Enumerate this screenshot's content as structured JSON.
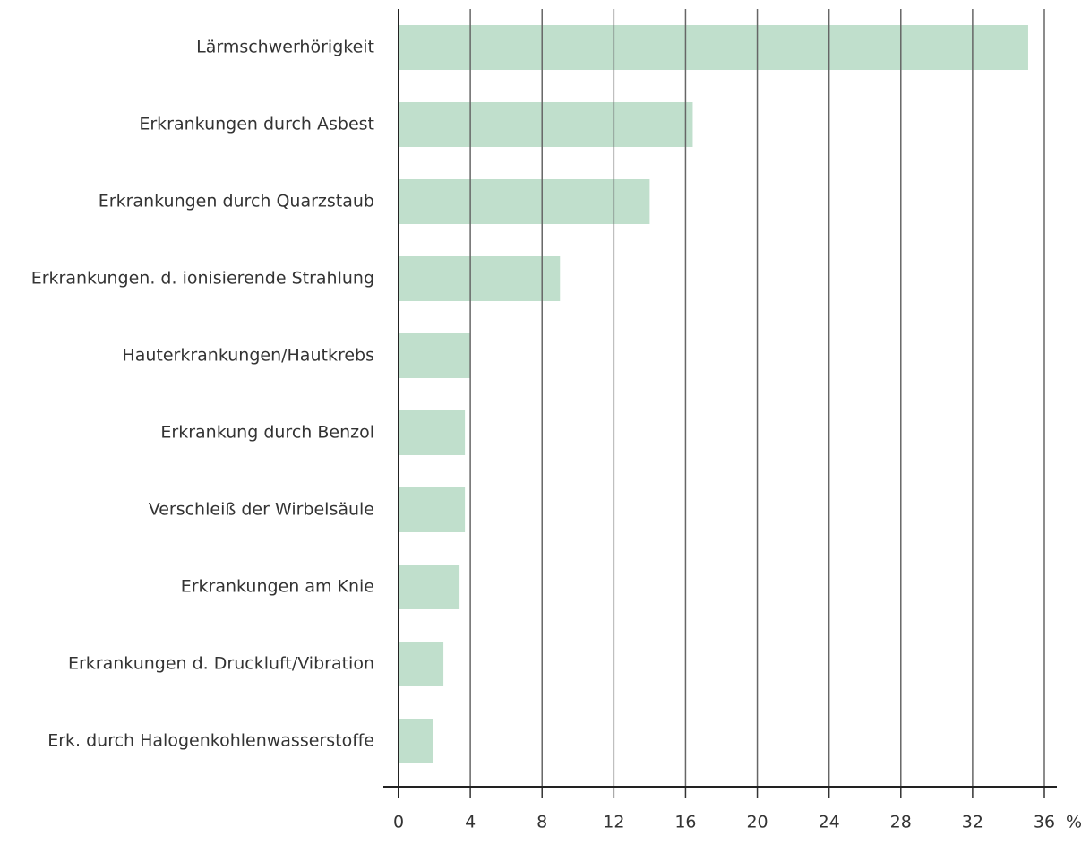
{
  "chart_data": {
    "type": "bar",
    "orientation": "horizontal",
    "categories": [
      "Lärmschwerhörigkeit",
      "Erkrankungen durch Asbest",
      "Erkrankungen durch Quarzstaub",
      "Erkrankungen. d. ionisierende Strahlung",
      "Hauterkrankungen/Hautkrebs",
      "Erkrankung durch Benzol",
      "Verschleiß der Wirbelsäule",
      "Erkrankungen am Knie",
      "Erkrankungen d. Druckluft/Vibration",
      "Erk. durch Halogenkohlenwasserstoffe"
    ],
    "values": [
      35.1,
      16.4,
      14.0,
      9.0,
      4.0,
      3.7,
      3.7,
      3.4,
      2.5,
      1.9
    ],
    "color": "#c0dfcc",
    "xlabel": "%",
    "xlim": [
      0,
      36
    ],
    "xticks": [
      0,
      4,
      8,
      12,
      16,
      20,
      24,
      28,
      32,
      36
    ],
    "grid": true
  }
}
